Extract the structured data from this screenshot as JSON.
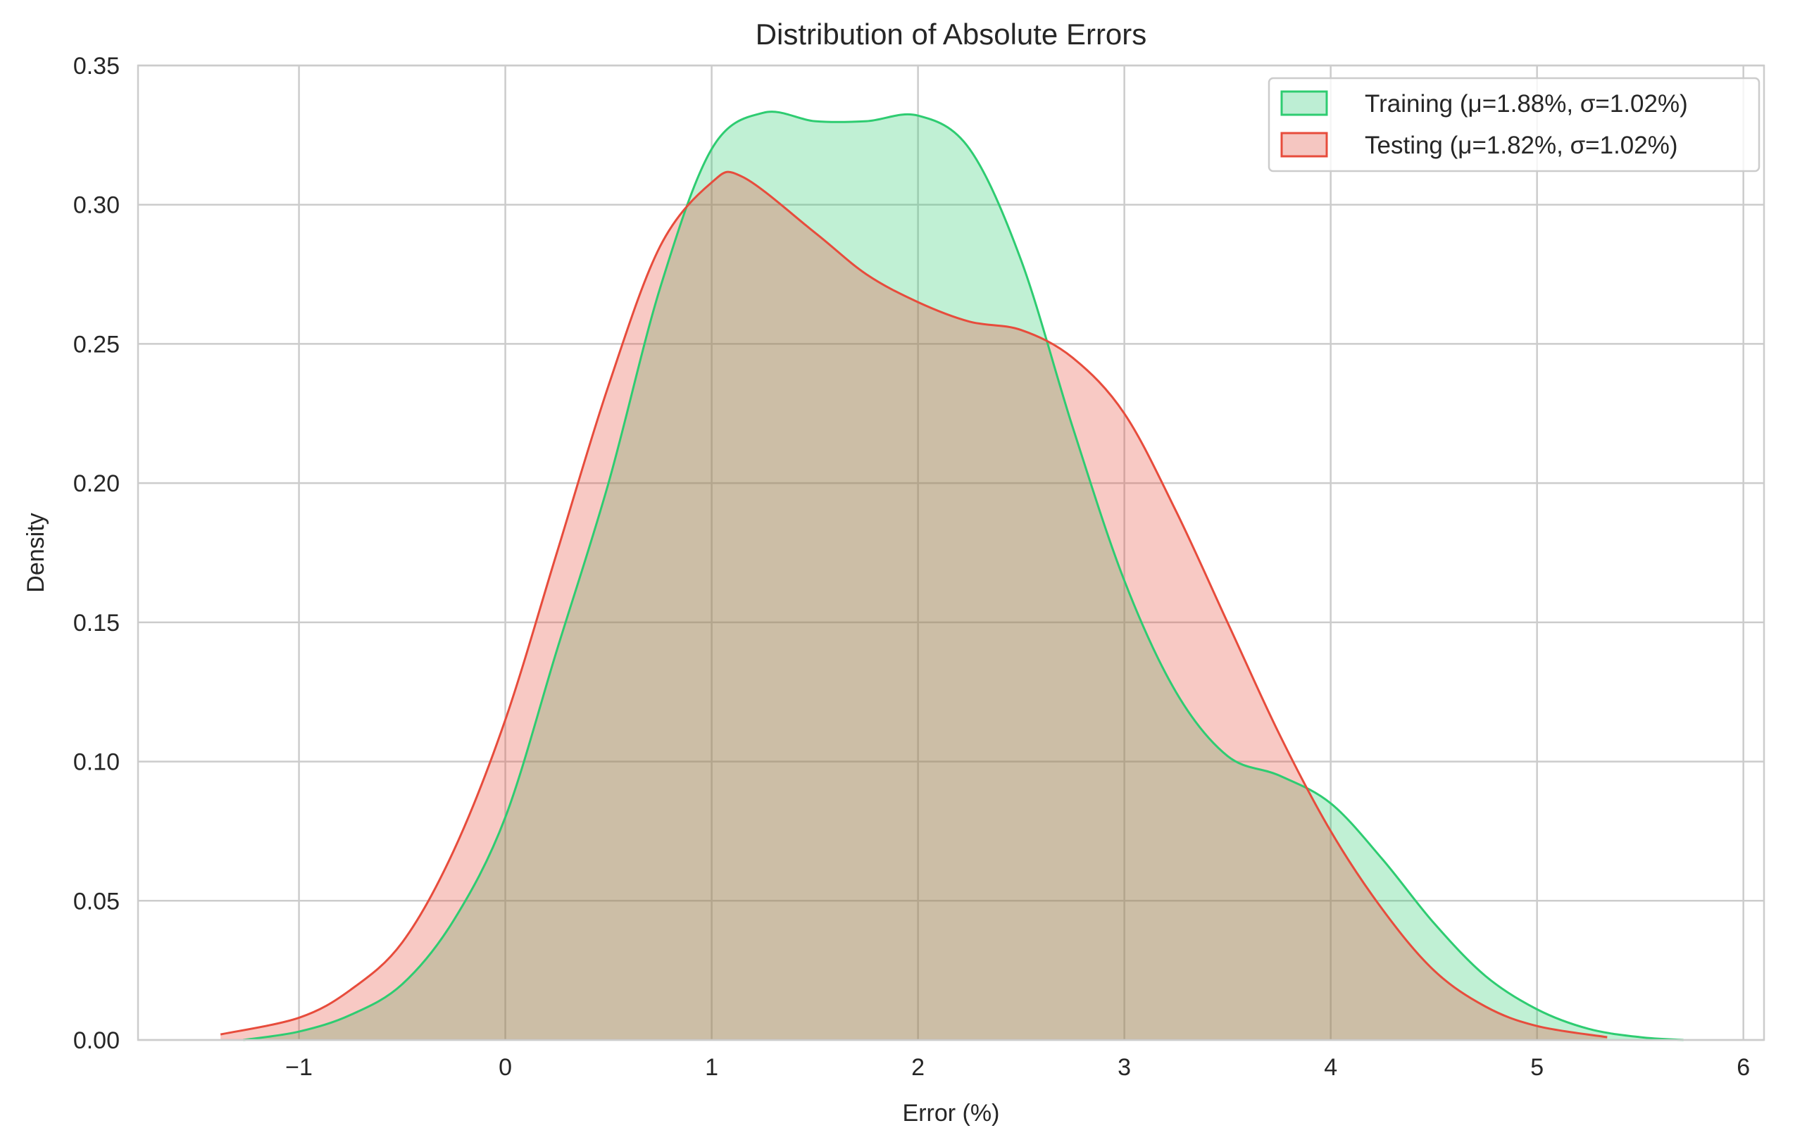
{
  "chart_data": {
    "type": "area",
    "title": "Distribution of Absolute Errors",
    "xlabel": "Error (%)",
    "ylabel": "Density",
    "xlim": [
      -1.78,
      6.1
    ],
    "ylim": [
      0,
      0.35
    ],
    "xticks": [
      -1,
      0,
      1,
      2,
      3,
      4,
      5,
      6
    ],
    "xtick_labels": [
      "−1",
      "0",
      "1",
      "2",
      "3",
      "4",
      "5",
      "6"
    ],
    "yticks": [
      0,
      0.05,
      0.1,
      0.15,
      0.2,
      0.25,
      0.3,
      0.35
    ],
    "ytick_labels": [
      "0.00",
      "0.05",
      "0.10",
      "0.15",
      "0.20",
      "0.25",
      "0.30",
      "0.35"
    ],
    "grid": true,
    "legend_position": "top-right",
    "series": [
      {
        "name": "Training (μ=1.88%, σ=1.02%)",
        "color": "#2ecc71",
        "fill_color": "#bdeed4",
        "x": [
          -1.27,
          -1.0,
          -0.75,
          -0.5,
          -0.25,
          0.0,
          0.25,
          0.5,
          0.75,
          1.0,
          1.25,
          1.5,
          1.75,
          2.0,
          2.25,
          2.5,
          2.75,
          3.0,
          3.25,
          3.5,
          3.75,
          4.0,
          4.25,
          4.5,
          4.75,
          5.0,
          5.25,
          5.5,
          5.71
        ],
        "y": [
          0.0,
          0.003,
          0.009,
          0.02,
          0.043,
          0.08,
          0.14,
          0.2,
          0.27,
          0.32,
          0.333,
          0.33,
          0.33,
          0.332,
          0.32,
          0.28,
          0.22,
          0.165,
          0.125,
          0.102,
          0.095,
          0.085,
          0.065,
          0.042,
          0.023,
          0.011,
          0.004,
          0.001,
          0.0
        ]
      },
      {
        "name": "Testing (μ=1.82%, σ=1.02%)",
        "color": "#e74c3c",
        "fill_color": "#f5c6c1",
        "x": [
          -1.38,
          -1.0,
          -0.75,
          -0.5,
          -0.25,
          0.0,
          0.25,
          0.5,
          0.75,
          1.0,
          1.15,
          1.5,
          1.75,
          2.0,
          2.25,
          2.5,
          2.75,
          3.0,
          3.25,
          3.5,
          3.75,
          4.0,
          4.25,
          4.5,
          4.75,
          5.0,
          5.34
        ],
        "y": [
          0.002,
          0.008,
          0.018,
          0.035,
          0.068,
          0.115,
          0.175,
          0.235,
          0.285,
          0.308,
          0.31,
          0.29,
          0.275,
          0.265,
          0.258,
          0.255,
          0.245,
          0.225,
          0.19,
          0.15,
          0.11,
          0.075,
          0.047,
          0.025,
          0.012,
          0.005,
          0.001
        ]
      }
    ]
  }
}
